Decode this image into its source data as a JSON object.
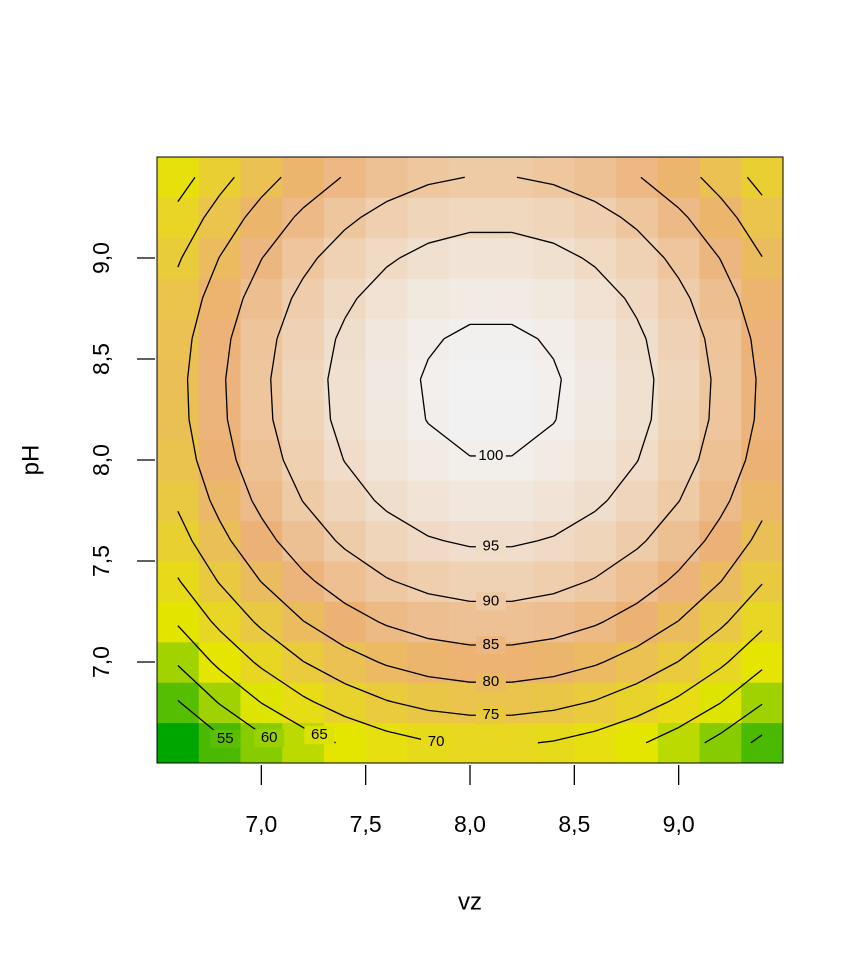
{
  "chart_data": {
    "type": "contour-heatmap",
    "x_label": "vz",
    "y_label": "pH",
    "x": [
      6.6,
      6.8,
      7.0,
      7.2,
      7.4,
      7.6,
      7.8,
      8.0,
      8.2,
      8.4,
      8.6,
      8.8,
      9.0,
      9.2,
      9.4
    ],
    "y": [
      6.6,
      6.8,
      7.0,
      7.2,
      7.4,
      7.6,
      7.8,
      8.0,
      8.2,
      8.4,
      8.6,
      8.8,
      9.0,
      9.2,
      9.4
    ],
    "z": [
      [
        48.1,
        53.7,
        58.5,
        62.5,
        65.7,
        68.1,
        69.7,
        70.5,
        70.5,
        69.7,
        68.1,
        65.7,
        62.5,
        58.5,
        53.7
      ],
      [
        54.7,
        60.3,
        65.1,
        69.1,
        72.3,
        74.7,
        76.3,
        77.1,
        77.1,
        76.3,
        74.7,
        72.3,
        69.1,
        65.1,
        60.3
      ],
      [
        60.5,
        66.1,
        70.9,
        74.9,
        78.1,
        80.5,
        82.1,
        82.9,
        82.9,
        82.1,
        80.5,
        78.1,
        74.9,
        70.9,
        66.1
      ],
      [
        65.5,
        71.1,
        75.9,
        79.9,
        83.1,
        85.5,
        87.1,
        87.9,
        87.9,
        87.1,
        85.5,
        83.1,
        79.9,
        75.9,
        71.1
      ],
      [
        69.7,
        75.3,
        80.1,
        84.1,
        87.3,
        89.7,
        91.3,
        92.1,
        92.1,
        91.3,
        89.7,
        87.3,
        84.1,
        80.1,
        75.3
      ],
      [
        73.1,
        78.7,
        83.5,
        87.5,
        90.7,
        93.1,
        94.7,
        95.5,
        95.5,
        94.7,
        93.1,
        90.7,
        87.5,
        83.5,
        78.7
      ],
      [
        75.7,
        81.3,
        86.1,
        90.1,
        93.3,
        95.7,
        97.3,
        98.1,
        98.1,
        97.3,
        95.7,
        93.3,
        90.1,
        86.1,
        81.3
      ],
      [
        77.5,
        83.1,
        87.9,
        91.9,
        95.1,
        97.5,
        99.1,
        99.9,
        99.9,
        99.1,
        97.5,
        95.1,
        91.9,
        87.9,
        83.1
      ],
      [
        78.5,
        84.1,
        88.9,
        92.9,
        96.1,
        98.5,
        100.1,
        100.9,
        100.9,
        100.1,
        98.5,
        96.1,
        92.9,
        88.9,
        84.1
      ],
      [
        78.7,
        84.3,
        89.1,
        93.1,
        96.3,
        98.7,
        100.3,
        101.1,
        101.1,
        100.3,
        98.7,
        96.3,
        93.1,
        89.1,
        84.3
      ],
      [
        78.1,
        83.7,
        88.5,
        92.5,
        95.7,
        98.1,
        99.7,
        100.5,
        100.5,
        99.7,
        98.1,
        95.7,
        92.5,
        88.5,
        83.7
      ],
      [
        76.7,
        82.3,
        87.1,
        91.1,
        94.3,
        96.7,
        98.3,
        99.1,
        99.1,
        98.3,
        96.7,
        94.3,
        91.1,
        87.1,
        82.3
      ],
      [
        74.5,
        80.1,
        84.9,
        88.9,
        92.1,
        94.5,
        96.1,
        96.9,
        96.9,
        96.1,
        94.5,
        92.1,
        88.9,
        84.9,
        80.1
      ],
      [
        71.5,
        77.1,
        81.9,
        85.9,
        89.1,
        91.5,
        93.1,
        93.9,
        93.9,
        93.1,
        91.5,
        89.1,
        85.9,
        81.9,
        77.1
      ],
      [
        67.7,
        73.3,
        78.1,
        82.1,
        85.3,
        87.7,
        89.3,
        90.1,
        90.1,
        89.3,
        87.7,
        85.3,
        82.1,
        78.1,
        73.3
      ]
    ],
    "contour_levels": [
      55,
      60,
      65,
      70,
      75,
      80,
      85,
      90,
      95,
      100
    ],
    "colors": [
      "#00A600",
      "#E6E600",
      "#ECB176",
      "#F2F2F2"
    ],
    "xlim": [
      6.5,
      9.5
    ],
    "ylim": [
      6.5,
      9.5
    ],
    "xticks": [
      {
        "value": 7.0,
        "label": "7,0"
      },
      {
        "value": 7.5,
        "label": "7,5"
      },
      {
        "value": 8.0,
        "label": "8,0"
      },
      {
        "value": 8.5,
        "label": "8,5"
      },
      {
        "value": 9.0,
        "label": "9,0"
      }
    ],
    "yticks": [
      {
        "value": 7.0,
        "label": "7,0"
      },
      {
        "value": 7.5,
        "label": "7,5"
      },
      {
        "value": 8.0,
        "label": "8,0"
      },
      {
        "value": 8.5,
        "label": "8,5"
      },
      {
        "value": 9.0,
        "label": "9,0"
      }
    ]
  }
}
